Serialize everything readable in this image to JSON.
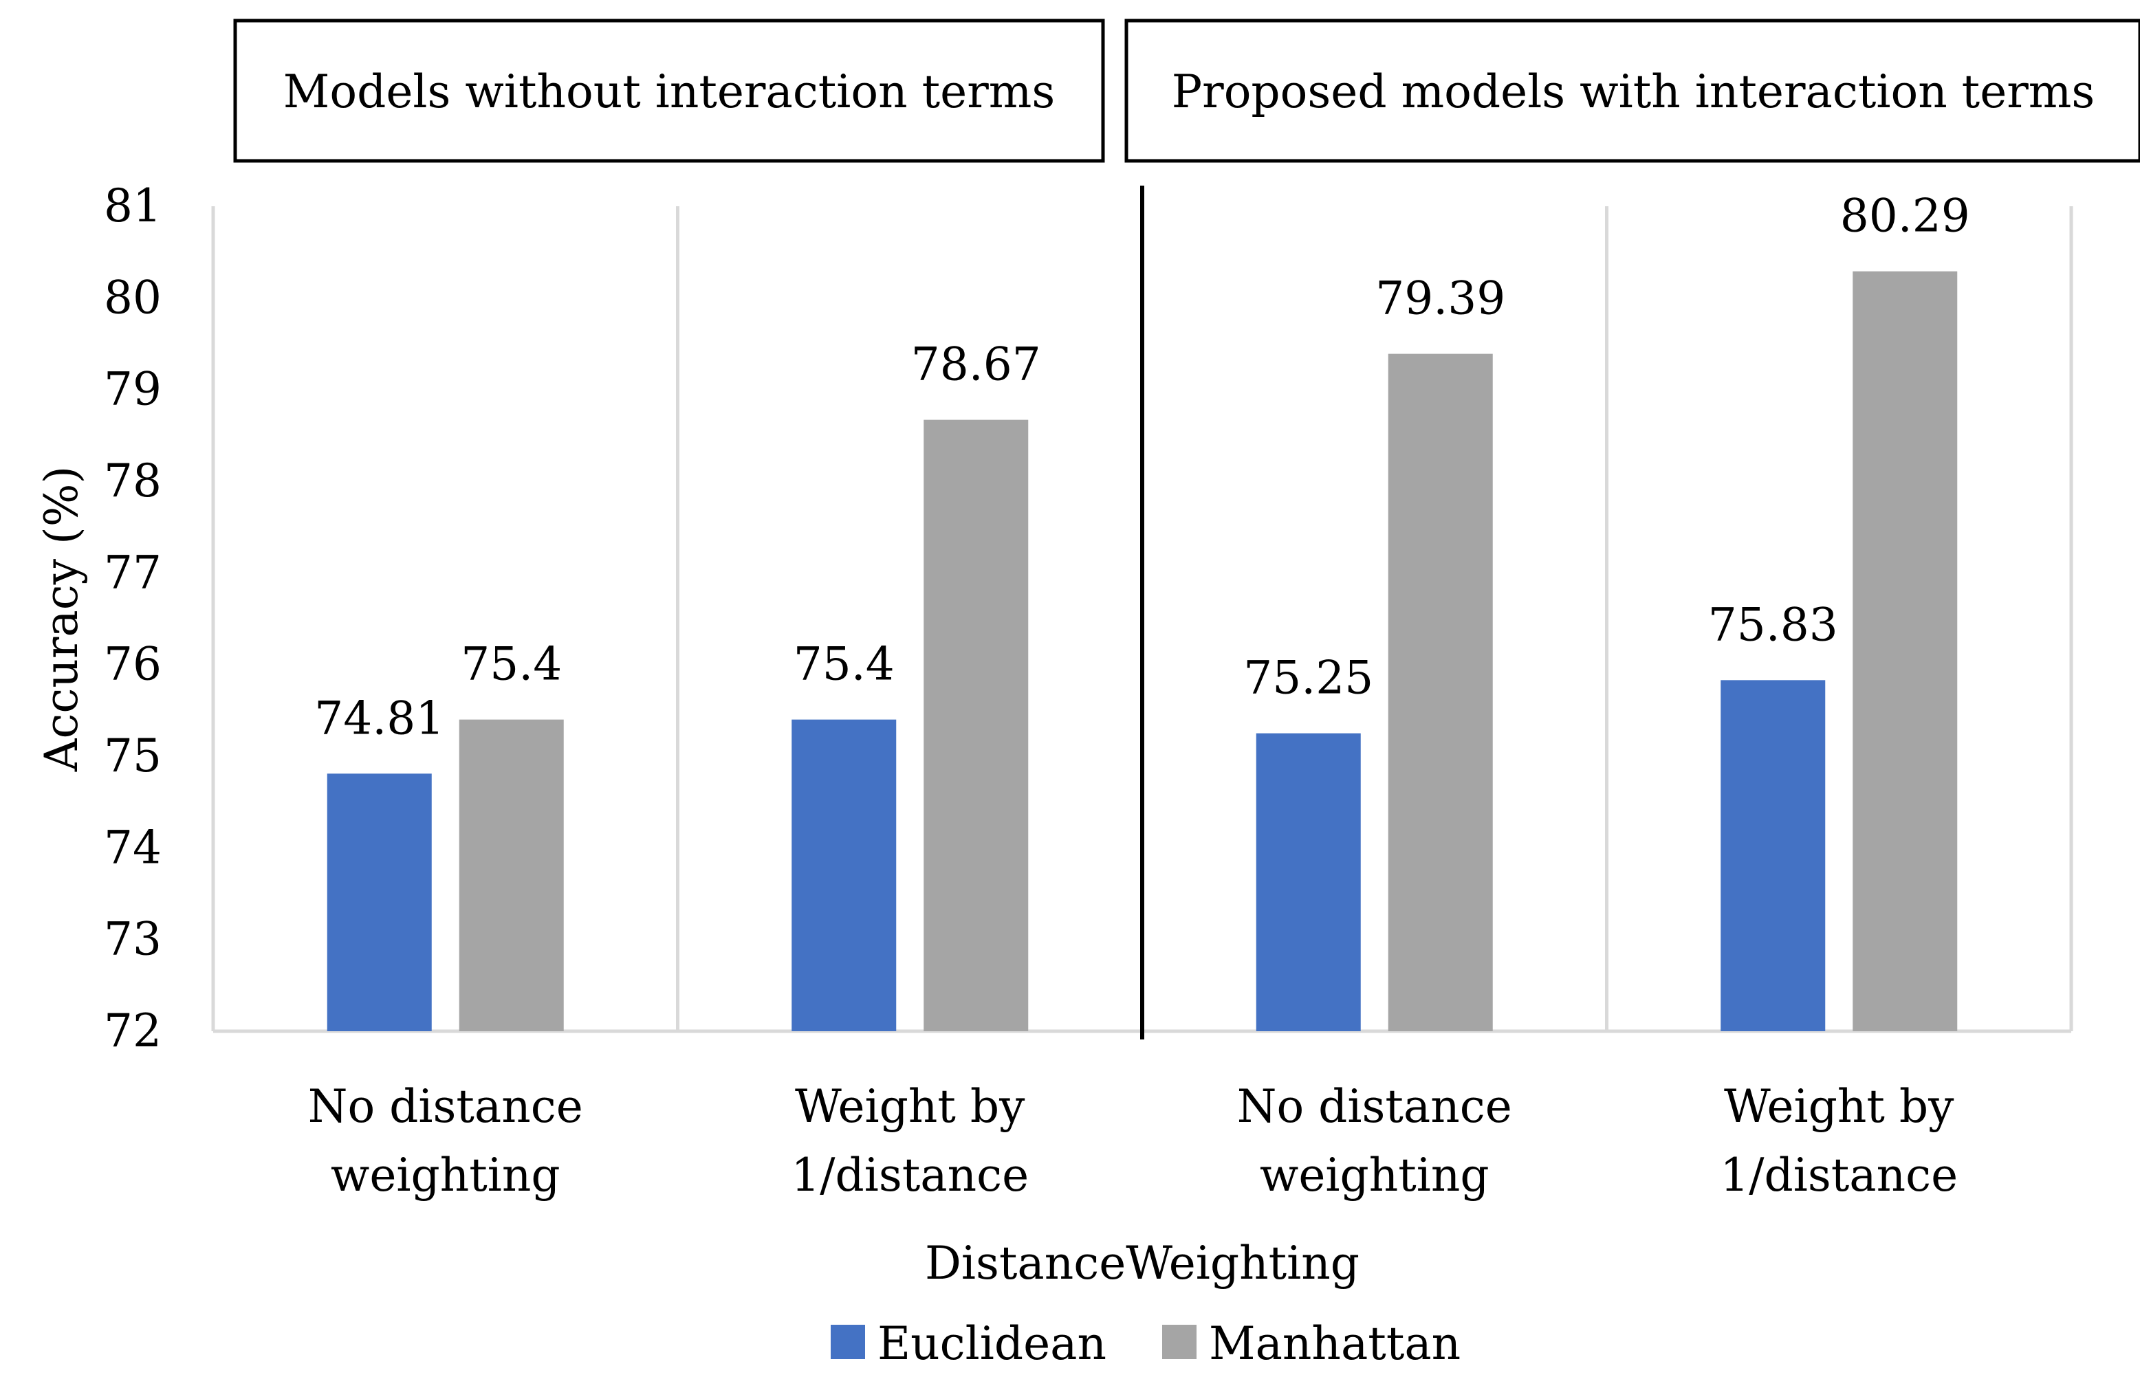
{
  "chart_data": {
    "type": "bar",
    "categories": [
      [
        "No distance",
        "weighting"
      ],
      [
        "Weight by",
        "1/distance"
      ],
      [
        "No distance",
        "weighting"
      ],
      [
        "Weight by",
        "1/distance"
      ]
    ],
    "group_labels": [
      "Models without interaction terms",
      "Proposed models with interaction terms"
    ],
    "series": [
      {
        "name": "Euclidean",
        "color": "#4472C4",
        "values": [
          74.81,
          75.4,
          75.25,
          75.83
        ]
      },
      {
        "name": "Manhattan",
        "color": "#A5A5A5",
        "values": [
          75.4,
          78.67,
          79.39,
          80.29
        ]
      }
    ],
    "data_labels": [
      [
        "74.81",
        "75.4",
        "75.25",
        "75.83"
      ],
      [
        "75.4",
        "78.67",
        "79.39",
        "80.29"
      ]
    ],
    "yticks": [
      "72",
      "73",
      "74",
      "75",
      "76",
      "77",
      "78",
      "79",
      "80",
      "81"
    ],
    "ylim": [
      72,
      81
    ],
    "xlabel": "DistanceWeighting",
    "ylabel": "Accuracy (%)",
    "legend_position": "bottom",
    "grid": false
  }
}
